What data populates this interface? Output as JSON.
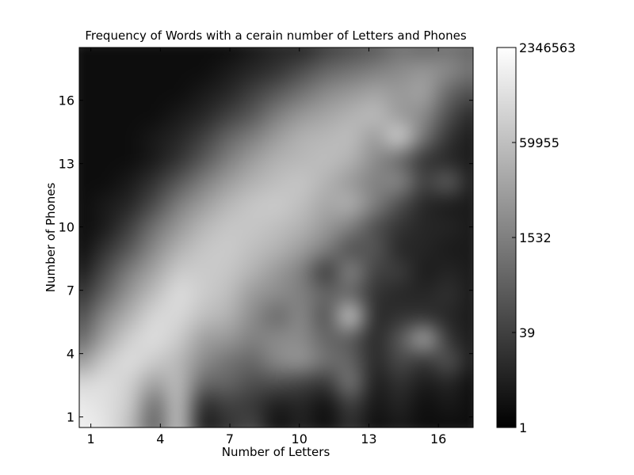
{
  "chart_data": {
    "type": "heatmap",
    "title": "Frequency of Words with a cerain number of Letters and Phones",
    "xlabel": "Number of Letters",
    "ylabel": "Number of Phones",
    "xlim": [
      0.5,
      17.5
    ],
    "ylim": [
      0.5,
      18.5
    ],
    "x_ticks": [
      1,
      4,
      7,
      10,
      13,
      16
    ],
    "y_ticks": [
      1,
      4,
      7,
      10,
      13,
      16
    ],
    "colormap": "gray",
    "color_scale": "log",
    "colorbar": {
      "min": 1,
      "max": 2346563,
      "tick_labels": [
        "1",
        "39",
        "1532",
        "59955",
        "2346563"
      ]
    },
    "grid": false,
    "values_note": "z is the colorbar fraction (0 = 1, 1 = 2346563, log scale); rows y=1..18, columns x=1..17",
    "z": [
      [
        0.95,
        0.9,
        0.75,
        0.35,
        0.8,
        0.08,
        0.2,
        0.3,
        0.05,
        0.15,
        0.05,
        0.2,
        0.05,
        0.1,
        0.05,
        0.05,
        0.05
      ],
      [
        0.92,
        0.88,
        0.8,
        0.4,
        0.78,
        0.15,
        0.25,
        0.22,
        0.1,
        0.15,
        0.05,
        0.25,
        0.08,
        0.15,
        0.05,
        0.1,
        0.05
      ],
      [
        0.85,
        0.88,
        0.82,
        0.62,
        0.75,
        0.4,
        0.4,
        0.3,
        0.3,
        0.25,
        0.2,
        0.5,
        0.1,
        0.2,
        0.1,
        0.15,
        0.05
      ],
      [
        0.6,
        0.8,
        0.88,
        0.8,
        0.72,
        0.55,
        0.45,
        0.4,
        0.55,
        0.6,
        0.45,
        0.4,
        0.15,
        0.3,
        0.2,
        0.35,
        0.1
      ],
      [
        0.4,
        0.65,
        0.82,
        0.88,
        0.8,
        0.62,
        0.6,
        0.5,
        0.55,
        0.55,
        0.4,
        0.35,
        0.15,
        0.35,
        0.7,
        0.2,
        0.1
      ],
      [
        0.3,
        0.55,
        0.7,
        0.85,
        0.85,
        0.75,
        0.7,
        0.55,
        0.4,
        0.55,
        0.3,
        0.85,
        0.15,
        0.2,
        0.2,
        0.15,
        0.1
      ],
      [
        0.2,
        0.4,
        0.6,
        0.75,
        0.88,
        0.8,
        0.75,
        0.6,
        0.55,
        0.5,
        0.4,
        0.4,
        0.2,
        0.15,
        0.15,
        0.2,
        0.1
      ],
      [
        0.1,
        0.3,
        0.5,
        0.65,
        0.8,
        0.8,
        0.78,
        0.7,
        0.6,
        0.5,
        0.2,
        0.55,
        0.25,
        0.25,
        0.1,
        0.15,
        0.1
      ],
      [
        0.05,
        0.2,
        0.35,
        0.55,
        0.7,
        0.78,
        0.8,
        0.75,
        0.7,
        0.62,
        0.5,
        0.3,
        0.35,
        0.15,
        0.15,
        0.1,
        0.1
      ],
      [
        0.05,
        0.1,
        0.25,
        0.45,
        0.6,
        0.72,
        0.78,
        0.78,
        0.75,
        0.7,
        0.6,
        0.5,
        0.3,
        0.2,
        0.15,
        0.15,
        0.1
      ],
      [
        0.05,
        0.1,
        0.15,
        0.3,
        0.5,
        0.62,
        0.72,
        0.78,
        0.8,
        0.75,
        0.65,
        0.7,
        0.5,
        0.3,
        0.15,
        0.1,
        0.1
      ],
      [
        0.05,
        0.05,
        0.1,
        0.2,
        0.35,
        0.5,
        0.62,
        0.7,
        0.75,
        0.78,
        0.7,
        0.6,
        0.5,
        0.55,
        0.25,
        0.4,
        0.1
      ],
      [
        0.05,
        0.05,
        0.05,
        0.1,
        0.2,
        0.35,
        0.5,
        0.62,
        0.7,
        0.72,
        0.75,
        0.7,
        0.55,
        0.4,
        0.2,
        0.15,
        0.1
      ],
      [
        0.05,
        0.05,
        0.05,
        0.1,
        0.15,
        0.25,
        0.4,
        0.5,
        0.62,
        0.7,
        0.72,
        0.75,
        0.6,
        0.85,
        0.45,
        0.2,
        0.1
      ],
      [
        0.05,
        0.05,
        0.05,
        0.05,
        0.1,
        0.15,
        0.25,
        0.35,
        0.5,
        0.6,
        0.65,
        0.7,
        0.75,
        0.6,
        0.55,
        0.3,
        0.15
      ],
      [
        0.05,
        0.05,
        0.05,
        0.05,
        0.05,
        0.1,
        0.15,
        0.25,
        0.35,
        0.45,
        0.55,
        0.6,
        0.65,
        0.6,
        0.65,
        0.4,
        0.3
      ],
      [
        0.05,
        0.05,
        0.05,
        0.05,
        0.05,
        0.05,
        0.1,
        0.15,
        0.2,
        0.3,
        0.4,
        0.45,
        0.5,
        0.55,
        0.6,
        0.55,
        0.45
      ],
      [
        0.05,
        0.05,
        0.05,
        0.05,
        0.05,
        0.05,
        0.05,
        0.1,
        0.15,
        0.15,
        0.25,
        0.3,
        0.35,
        0.45,
        0.4,
        0.45,
        0.4
      ]
    ]
  }
}
